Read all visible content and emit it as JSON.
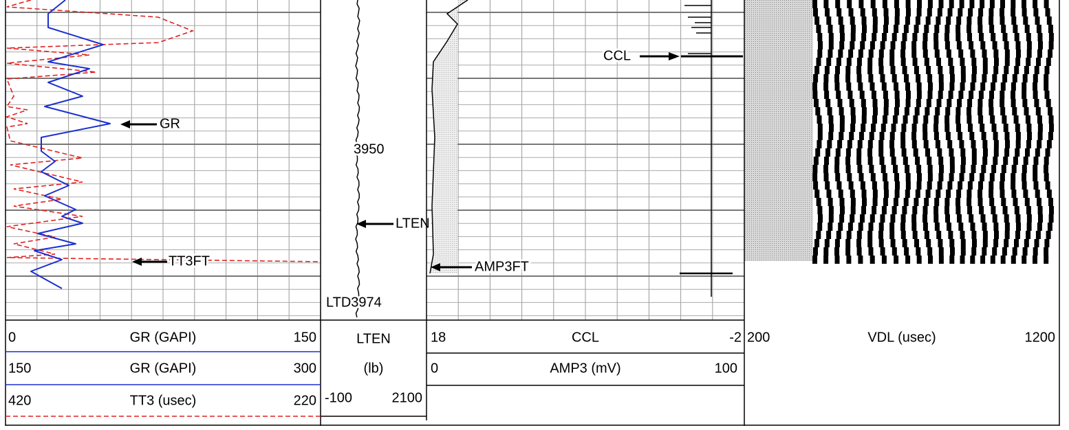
{
  "tracks": [
    {
      "headers": [
        {
          "left": "0",
          "name": "GR (GAPI)",
          "right": "150"
        },
        {
          "left": "150",
          "name": "GR (GAPI)",
          "right": "300"
        },
        {
          "left": "420",
          "name": "TT3 (usec)",
          "right": "220"
        }
      ]
    },
    {
      "headers": [
        {
          "name": "LTEN"
        },
        {
          "name": "(lb)"
        },
        {
          "left": "-100",
          "right": "2100"
        }
      ]
    },
    {
      "headers": [
        {
          "left": "18",
          "name": "CCL",
          "right": "-2"
        },
        {
          "left": "0",
          "name": "AMP3 (mV)",
          "right": "100"
        }
      ]
    },
    {
      "headers": [
        {
          "left": "200",
          "name": "VDL (usec)",
          "right": "1200"
        }
      ]
    }
  ],
  "annotations": {
    "gr": "GR",
    "tt3ft": "TT3FT",
    "lten": "LTEN",
    "amp3ft": "AMP3FT",
    "ccl": "CCL"
  },
  "depths": {
    "depth": "3950",
    "ltd": "LTD3974"
  }
}
